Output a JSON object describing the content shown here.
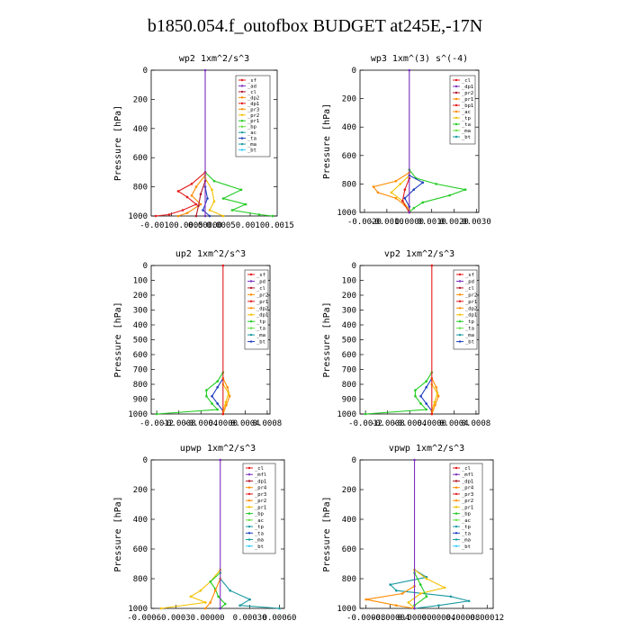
{
  "title": "b1850.054.f_outofbox  BUDGET at245E,-17N",
  "colors": {
    "black": "#000000",
    "red": "#e41a1c",
    "darkred": "#b2182b",
    "orange": "#ff8c00",
    "yellow": "#f2c200",
    "green": "#22cc22",
    "blue": "#1f3fbf",
    "teal": "#1a9aa0",
    "cyan": "#33ccff",
    "purple": "#7b2fbf",
    "lightgreen": "#66dd44"
  },
  "chart_data": [
    {
      "type": "line",
      "title": "wp2   1xm^2/s^3",
      "ylabel": "Pressure [hPa]",
      "ylim": [
        1000,
        0
      ],
      "yticks": [
        "0",
        "200",
        "400",
        "600",
        "800",
        "1000"
      ],
      "xlim": [
        -0.0012,
        0.0016
      ],
      "xtick_labels": [
        "-0.00100.0005",
        "0.00000",
        "0.00050.00100.0015"
      ],
      "xtick_values": [
        -0.00075,
        0.0,
        0.001
      ],
      "legend": [
        "_sf",
        "_ad",
        "_cl",
        "_dp2",
        "_dp1",
        "_pr3",
        "_pr2",
        "_pr1",
        "_bp",
        "_ac",
        "_ta",
        "_ma",
        "_bt"
      ],
      "series": [
        {
          "name": "_bp",
          "color": "green",
          "p": [
            700,
            760,
            820,
            880,
            920,
            960,
            990,
            1000
          ],
          "x": [
            0,
            0.0002,
            0.0008,
            0.0004,
            0.0009,
            0.0006,
            0.0012,
            0.0015
          ]
        },
        {
          "name": "_pr1",
          "color": "red",
          "p": [
            700,
            780,
            830,
            870,
            920,
            960,
            990,
            1000
          ],
          "x": [
            0,
            -0.0003,
            -0.0006,
            -0.0004,
            -0.0002,
            -0.0005,
            -0.0008,
            -0.0011
          ]
        },
        {
          "name": "_pr2",
          "color": "orange",
          "p": [
            720,
            800,
            860,
            920,
            980,
            1000
          ],
          "x": [
            0,
            -0.0002,
            -0.0003,
            -0.0001,
            -0.0004,
            -0.0006
          ]
        },
        {
          "name": "_ac",
          "color": "yellow",
          "p": [
            740,
            820,
            900,
            960,
            1000
          ],
          "x": [
            0,
            0.00015,
            0.0002,
            0.0001,
            0.0004
          ]
        },
        {
          "name": "_dp1",
          "color": "darkred",
          "p": [
            760,
            850,
            930,
            1000
          ],
          "x": [
            0,
            -0.0001,
            -0.00015,
            -0.0002
          ]
        },
        {
          "name": "_ta",
          "color": "blue",
          "p": [
            800,
            880,
            960,
            1000
          ],
          "x": [
            0,
            5e-05,
            -5e-05,
            0.0001
          ]
        },
        {
          "name": "_bt",
          "color": "purple",
          "p": [
            0,
            1000
          ],
          "x": [
            0,
            0
          ]
        }
      ]
    },
    {
      "type": "line",
      "title": "wp3   1xm^(3) s^(-4)",
      "ylabel": "Pressure [hPa]",
      "ylim": [
        1000,
        0
      ],
      "yticks": [
        "0",
        "200",
        "400",
        "600",
        "800",
        "1000"
      ],
      "xlim": [
        -0.0022,
        0.0031
      ],
      "xtick_labels": [
        "-0.0020",
        "-0.0010",
        "0.0000",
        "0.0010",
        "0.0020",
        "0.0030"
      ],
      "xtick_values": [
        -0.002,
        -0.001,
        0.0,
        0.001,
        0.002,
        0.003
      ],
      "legend": [
        "_cl",
        "_dp1",
        "_pr2",
        "_pr1",
        "_bp1",
        "_ac",
        "_tp",
        "_ta",
        "_ma",
        "_bt"
      ],
      "series": [
        {
          "name": "_bp1",
          "color": "green",
          "p": [
            700,
            760,
            800,
            840,
            880,
            930,
            970,
            1000
          ],
          "x": [
            0,
            0.0003,
            0.0012,
            0.0025,
            0.0018,
            0.0006,
            0.0002,
            0
          ]
        },
        {
          "name": "_pr1",
          "color": "orange",
          "p": [
            720,
            780,
            820,
            860,
            900,
            950,
            1000
          ],
          "x": [
            0,
            -0.0006,
            -0.0016,
            -0.0014,
            -0.0006,
            -0.0002,
            0
          ]
        },
        {
          "name": "_pr2",
          "color": "yellow",
          "p": [
            740,
            800,
            860,
            920,
            980
          ],
          "x": [
            0,
            -0.0004,
            -0.0008,
            -0.0003,
            0
          ]
        },
        {
          "name": "_ta",
          "color": "blue",
          "p": [
            740,
            790,
            840,
            900,
            960
          ],
          "x": [
            0,
            0.0006,
            0.0002,
            -0.0002,
            0
          ]
        },
        {
          "name": "_cl",
          "color": "red",
          "p": [
            760,
            840,
            920,
            1000
          ],
          "x": [
            0,
            -0.0002,
            -0.0003,
            0
          ]
        },
        {
          "name": "_bt",
          "color": "purple",
          "p": [
            0,
            1000
          ],
          "x": [
            0,
            0
          ]
        }
      ]
    },
    {
      "type": "line",
      "title": "up2   1xm^2/s^3",
      "ylabel": "Pressure [hPa]",
      "ylim": [
        1000,
        0
      ],
      "yticks": [
        "0",
        "100",
        "200",
        "300",
        "400",
        "500",
        "600",
        "700",
        "800",
        "900",
        "1000"
      ],
      "xlim": [
        -0.0013,
        0.00085
      ],
      "xtick_labels": [
        "-0.0012",
        "-0.0008",
        "-0.0004",
        "0.0000",
        "0.0004",
        "0.0008"
      ],
      "xtick_values": [
        -0.0012,
        -0.0008,
        -0.0004,
        0.0,
        0.0004,
        0.0008
      ],
      "legend": [
        "_sf",
        "_pd",
        "_cl",
        "_pr2",
        "_pr1",
        "_dp2",
        "_dp1",
        "_tp",
        "_ta",
        "_ma",
        "_bt"
      ],
      "series": [
        {
          "name": "_dp2",
          "color": "green",
          "p": [
            720,
            780,
            840,
            880,
            930,
            970,
            1000
          ],
          "x": [
            0,
            -0.0001,
            -0.0003,
            -0.0003,
            -0.0002,
            -0.0001,
            -0.0012
          ]
        },
        {
          "name": "_ta",
          "color": "blue",
          "p": [
            760,
            820,
            880,
            930,
            980
          ],
          "x": [
            0,
            -0.0001,
            -0.0002,
            -0.0001,
            0
          ]
        },
        {
          "name": "_pr1",
          "color": "orange",
          "p": [
            760,
            820,
            880,
            940,
            1000
          ],
          "x": [
            0,
            8e-05,
            0.00012,
            6e-05,
            0
          ]
        },
        {
          "name": "_pr2",
          "color": "yellow",
          "p": [
            800,
            860,
            920,
            980
          ],
          "x": [
            0,
            0.0001,
            5e-05,
            0
          ]
        },
        {
          "name": "_cl",
          "color": "red",
          "p": [
            0,
            1000
          ],
          "x": [
            0,
            0
          ]
        }
      ]
    },
    {
      "type": "line",
      "title": "vp2   1xm^2/s^3",
      "ylabel": "Pressure [hPa]",
      "ylim": [
        1000,
        0
      ],
      "yticks": [
        "0",
        "100",
        "200",
        "300",
        "400",
        "500",
        "600",
        "700",
        "800",
        "900",
        "1000"
      ],
      "xlim": [
        -0.0013,
        0.00085
      ],
      "xtick_labels": [
        "-0.0012",
        "-0.0008",
        "-0.0004",
        "0.0000",
        "0.0004",
        "0.0008"
      ],
      "xtick_values": [
        -0.0012,
        -0.0008,
        -0.0004,
        0.0,
        0.0004,
        0.0008
      ],
      "legend": [
        "_sf",
        "_pd",
        "_cl",
        "_pr2",
        "_pr1",
        "_dp2",
        "_dp1",
        "_tp",
        "_ta",
        "_ma",
        "_bt"
      ],
      "series": [
        {
          "name": "_dp2",
          "color": "green",
          "p": [
            720,
            780,
            840,
            880,
            930,
            970,
            1000
          ],
          "x": [
            0,
            -0.0001,
            -0.0003,
            -0.0003,
            -0.0002,
            -0.0001,
            -0.0012
          ]
        },
        {
          "name": "_ta",
          "color": "blue",
          "p": [
            760,
            820,
            880,
            930,
            980
          ],
          "x": [
            0,
            -0.0001,
            -0.0002,
            -0.0001,
            0
          ]
        },
        {
          "name": "_pr1",
          "color": "orange",
          "p": [
            760,
            820,
            880,
            940,
            1000
          ],
          "x": [
            0,
            8e-05,
            0.00012,
            6e-05,
            0
          ]
        },
        {
          "name": "_pr2",
          "color": "yellow",
          "p": [
            800,
            860,
            920,
            980
          ],
          "x": [
            0,
            0.0001,
            5e-05,
            0
          ]
        },
        {
          "name": "_cl",
          "color": "red",
          "p": [
            0,
            1000
          ],
          "x": [
            0,
            0
          ]
        }
      ]
    },
    {
      "type": "line",
      "title": "upwp   1xm^2/s^3",
      "ylabel": "Pressure [hPa]",
      "ylim": [
        1000,
        0
      ],
      "yticks": [
        "0",
        "200",
        "400",
        "600",
        "800",
        "1000"
      ],
      "xlim": [
        -0.0007,
        0.00065
      ],
      "xtick_labels": [
        "-0.00060.00030.00000",
        "0.00030",
        "0.00060"
      ],
      "xtick_values": [
        -0.00045,
        0.0003,
        0.0006
      ],
      "legend": [
        "_cl",
        "_mfl",
        "_dp1",
        "_pr4",
        "_pr3",
        "_pr2",
        "_pr1",
        "_bp",
        "_ac",
        "_tp",
        "_ta",
        "_ma",
        "_bt"
      ],
      "series": [
        {
          "name": "_pr1",
          "color": "yellow",
          "p": [
            740,
            820,
            880,
            920,
            960,
            1000
          ],
          "x": [
            0,
            -0.0001,
            -0.0002,
            -0.0003,
            -0.00015,
            -0.0006
          ]
        },
        {
          "name": "_bp",
          "color": "green",
          "p": [
            760,
            820,
            870,
            920,
            970,
            1000
          ],
          "x": [
            0,
            -0.0001,
            -5e-05,
            -2e-05,
            5e-05,
            0
          ]
        },
        {
          "name": "_ma",
          "color": "teal",
          "p": [
            800,
            880,
            940,
            980,
            1000
          ],
          "x": [
            0,
            0.0001,
            0.0003,
            0.0002,
            0.0006
          ]
        },
        {
          "name": "_pr2",
          "color": "orange",
          "p": [
            800,
            880,
            960,
            1000
          ],
          "x": [
            0,
            -5e-05,
            -0.0001,
            -0.00015
          ]
        },
        {
          "name": "_bt",
          "color": "purple",
          "p": [
            0,
            1000
          ],
          "x": [
            0,
            0
          ]
        }
      ]
    },
    {
      "type": "line",
      "title": "vpwp   1xm^2/s^3",
      "ylabel": "Pressure [hPa]",
      "ylim": [
        1000,
        0
      ],
      "yticks": [
        "0",
        "200",
        "400",
        "600",
        "800",
        "1000"
      ],
      "xlim": [
        -9e-05,
        0.00013
      ],
      "xtick_labels": [
        "-0.00008",
        "-0.00004",
        "0.00000",
        "0.00004",
        "0.00008",
        "0.00012"
      ],
      "xtick_values": [
        -8e-05,
        -4e-05,
        0.0,
        4e-05,
        8e-05,
        0.00012
      ],
      "legend": [
        "_cl",
        "_mfl",
        "_dp1",
        "_pr4",
        "_pr3",
        "_pr2",
        "_pr1",
        "_bp",
        "_ac",
        "_tp",
        "_ta",
        "_ma",
        "_bt"
      ],
      "series": [
        {
          "name": "_ma",
          "color": "teal",
          "p": [
            740,
            790,
            840,
            880,
            920,
            950,
            980,
            1000
          ],
          "x": [
            0,
            2e-05,
            -4e-05,
            -3e-05,
            6e-05,
            9e-05,
            4e-05,
            0
          ]
        },
        {
          "name": "_pr2",
          "color": "yellow",
          "p": [
            740,
            800,
            860,
            900,
            960,
            1000
          ],
          "x": [
            0,
            2e-05,
            5e-05,
            1e-05,
            -1e-05,
            0
          ]
        },
        {
          "name": "_pr1",
          "color": "orange",
          "p": [
            850,
            900,
            940,
            980,
            1000
          ],
          "x": [
            0,
            -2e-05,
            -8e-05,
            -3e-05,
            0
          ]
        },
        {
          "name": "_bp",
          "color": "green",
          "p": [
            760,
            840,
            920,
            980
          ],
          "x": [
            0,
            1e-05,
            2e-05,
            0
          ]
        },
        {
          "name": "_bt",
          "color": "purple",
          "p": [
            0,
            1000
          ],
          "x": [
            0,
            0
          ]
        }
      ]
    }
  ]
}
